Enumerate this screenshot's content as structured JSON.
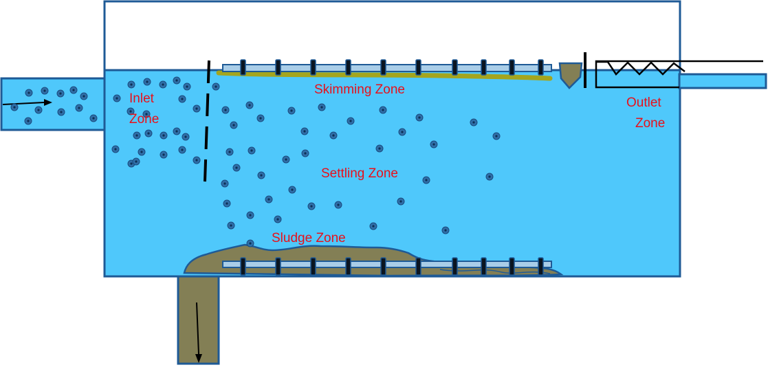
{
  "labels": {
    "inlet": "Inlet",
    "inlet_2": "Zone",
    "skimming": "Skimming Zone",
    "outlet": "Outlet",
    "outlet_2": "Zone",
    "settling": "Settling Zone",
    "sludge": "Sludge Zone"
  },
  "colors": {
    "water": "#4fc8fb",
    "outline": "#1e5a96",
    "particle_fill": "#2f6fa8",
    "particle_core": "#0d2f55",
    "sludge": "#837f55",
    "scum": "#a4a51e",
    "label": "#e8101a",
    "scraper_blade": "#0b1520",
    "rail": "#a9cde8"
  }
}
